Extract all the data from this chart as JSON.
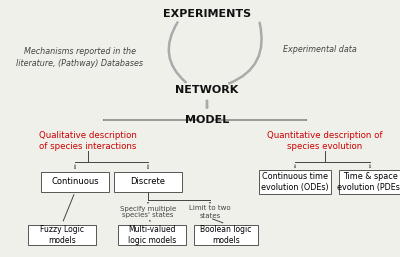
{
  "bg_color": "#f0f0eb",
  "experiments_label": "EXPERIMENTS",
  "network_label": "NETWORK",
  "model_label": "MODEL",
  "left_italic1": "Mechanisms reported in the",
  "left_italic2": "literature, (Pathway) Databases",
  "right_italic": "Experimental data",
  "qual_label": "Qualitative description\nof species interactions",
  "quant_label": "Quantitative description of\nspecies evolution",
  "continuous_label": "Continuous",
  "discrete_label": "Discrete",
  "ode_label": "Continuous time\nevolution (ODEs)",
  "pde_label": "Time & space\nevolution (PDEs)",
  "fuzzy_label": "Fuzzy Logic\nmodels",
  "multi_label": "Multi-valued\nlogic models",
  "boolean_label": "Boolean logic\nmodels",
  "specify_label": "Specify multiple\nspecies' states",
  "limit_label": "Limit to two\nstates",
  "red_color": "#cc0000",
  "gray_color": "#999999",
  "dark_gray": "#444444",
  "black": "#111111",
  "box_edge": "#555555",
  "arrow_gray": "#aaaaaa"
}
